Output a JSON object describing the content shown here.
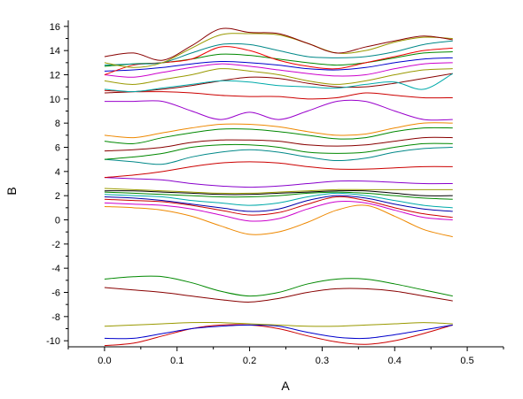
{
  "chart_data": {
    "type": "line",
    "xlabel": "A",
    "ylabel": "B",
    "xlim": [
      -0.05,
      0.55
    ],
    "ylim": [
      -10.5,
      16.5
    ],
    "xticks": [
      "0.0",
      "0.1",
      "0.2",
      "0.3",
      "0.4",
      "0.5"
    ],
    "yticks": [
      "-10",
      "-8",
      "-6",
      "-4",
      "-2",
      "0",
      "2",
      "4",
      "6",
      "8",
      "10",
      "12",
      "14",
      "16"
    ],
    "x": [
      0.0,
      0.04,
      0.08,
      0.12,
      0.16,
      0.2,
      0.24,
      0.28,
      0.32,
      0.36,
      0.4,
      0.44,
      0.48
    ],
    "series": [
      {
        "color": "#cc0000",
        "values": [
          -10.4,
          -10.2,
          -9.6,
          -9.0,
          -8.7,
          -8.7,
          -9.0,
          -9.6,
          -10.1,
          -10.3,
          -10.0,
          -9.4,
          -8.7
        ]
      },
      {
        "color": "#0000cc",
        "values": [
          -9.8,
          -9.8,
          -9.4,
          -9.0,
          -8.8,
          -8.7,
          -8.8,
          -9.3,
          -9.7,
          -9.8,
          -9.5,
          -9.1,
          -8.7
        ]
      },
      {
        "color": "#999900",
        "values": [
          -8.8,
          -8.7,
          -8.6,
          -8.5,
          -8.5,
          -8.6,
          -8.7,
          -8.8,
          -8.8,
          -8.7,
          -8.6,
          -8.5,
          -8.6
        ]
      },
      {
        "color": "#880000",
        "values": [
          -5.6,
          -5.8,
          -6.0,
          -6.3,
          -6.6,
          -6.8,
          -6.5,
          -6.0,
          -5.7,
          -5.7,
          -5.9,
          -6.3,
          -6.7
        ]
      },
      {
        "color": "#008800",
        "values": [
          -4.9,
          -4.7,
          -4.7,
          -5.2,
          -5.9,
          -6.3,
          -6.0,
          -5.3,
          -4.9,
          -4.9,
          -5.3,
          -5.8,
          -6.3
        ]
      },
      {
        "color": "#ee8800",
        "values": [
          1.1,
          1.0,
          0.8,
          0.3,
          -0.5,
          -1.2,
          -1.0,
          -0.2,
          0.8,
          1.2,
          0.3,
          -0.8,
          -1.4
        ]
      },
      {
        "color": "#cc00cc",
        "values": [
          1.4,
          1.3,
          1.2,
          0.9,
          0.4,
          -0.1,
          0.1,
          0.9,
          1.5,
          1.4,
          0.8,
          0.2,
          0.0
        ]
      },
      {
        "color": "#cc0000",
        "values": [
          1.7,
          1.6,
          1.5,
          1.2,
          0.8,
          0.4,
          0.6,
          1.3,
          1.9,
          1.6,
          1.0,
          0.5,
          0.2
        ]
      },
      {
        "color": "#0000aa",
        "values": [
          1.9,
          1.8,
          1.6,
          1.3,
          1.0,
          0.7,
          0.9,
          1.6,
          2.0,
          1.8,
          1.3,
          0.9,
          0.7
        ]
      },
      {
        "color": "#00aaaa",
        "values": [
          2.1,
          2.0,
          1.9,
          1.6,
          1.4,
          1.2,
          1.4,
          1.9,
          2.2,
          2.0,
          1.6,
          1.2,
          1.0
        ]
      },
      {
        "color": "#008800",
        "values": [
          2.3,
          2.2,
          2.1,
          2.0,
          1.9,
          1.9,
          2.0,
          2.2,
          2.3,
          2.2,
          2.0,
          1.8,
          1.7
        ]
      },
      {
        "color": "#000000",
        "values": [
          2.4,
          2.4,
          2.3,
          2.2,
          2.1,
          2.1,
          2.2,
          2.3,
          2.4,
          2.4,
          2.2,
          2.0,
          2.0
        ]
      },
      {
        "color": "#999900",
        "values": [
          2.6,
          2.5,
          2.4,
          2.3,
          2.2,
          2.2,
          2.3,
          2.4,
          2.5,
          2.5,
          2.5,
          2.5,
          2.5
        ]
      },
      {
        "color": "#8800cc",
        "values": [
          3.5,
          3.4,
          3.3,
          3.0,
          2.8,
          2.7,
          2.8,
          3.0,
          3.2,
          3.2,
          3.1,
          3.0,
          3.0
        ]
      },
      {
        "color": "#cc0000",
        "values": [
          3.5,
          3.7,
          4.0,
          4.4,
          4.7,
          4.8,
          4.7,
          4.4,
          4.2,
          4.2,
          4.3,
          4.4,
          4.4
        ]
      },
      {
        "color": "#008888",
        "values": [
          5.0,
          4.8,
          4.6,
          5.2,
          5.6,
          5.8,
          5.6,
          5.2,
          4.9,
          5.1,
          5.6,
          5.9,
          6.0
        ]
      },
      {
        "color": "#008800",
        "values": [
          5.0,
          5.2,
          5.5,
          6.0,
          6.2,
          6.2,
          6.0,
          5.6,
          5.5,
          5.6,
          6.0,
          6.3,
          6.3
        ]
      },
      {
        "color": "#880000",
        "values": [
          5.7,
          5.8,
          6.0,
          6.4,
          6.6,
          6.6,
          6.5,
          6.2,
          6.1,
          6.2,
          6.5,
          6.8,
          6.8
        ]
      },
      {
        "color": "#008800",
        "values": [
          6.5,
          6.3,
          6.8,
          7.2,
          7.5,
          7.5,
          7.3,
          7.0,
          6.7,
          6.8,
          7.3,
          7.6,
          7.6
        ]
      },
      {
        "color": "#ee8800",
        "values": [
          7.0,
          6.8,
          7.2,
          7.6,
          7.9,
          7.9,
          7.7,
          7.3,
          7.0,
          7.1,
          7.6,
          8.0,
          8.0
        ]
      },
      {
        "color": "#9900cc",
        "values": [
          9.8,
          9.8,
          9.8,
          9.0,
          8.3,
          8.9,
          8.3,
          9.0,
          9.8,
          9.8,
          9.0,
          8.3,
          8.3
        ]
      },
      {
        "color": "#cc0000",
        "values": [
          10.7,
          10.6,
          10.6,
          10.5,
          10.3,
          10.2,
          10.2,
          10.0,
          10.1,
          10.5,
          10.3,
          10.1,
          10.1
        ]
      },
      {
        "color": "#880000",
        "values": [
          10.5,
          10.6,
          10.8,
          11.1,
          11.5,
          11.8,
          11.7,
          11.3,
          11.0,
          11.0,
          11.3,
          11.7,
          12.1
        ]
      },
      {
        "color": "#00aaaa",
        "values": [
          10.8,
          10.6,
          10.9,
          11.2,
          11.5,
          11.4,
          11.1,
          11.0,
          10.9,
          11.2,
          11.4,
          10.8,
          12.1
        ]
      },
      {
        "color": "#999900",
        "values": [
          11.5,
          11.2,
          11.6,
          12.0,
          12.5,
          12.3,
          12.0,
          11.5,
          11.2,
          11.5,
          12.0,
          12.4,
          12.5
        ]
      },
      {
        "color": "#cc00cc",
        "values": [
          12.0,
          11.8,
          12.2,
          12.6,
          12.9,
          12.7,
          12.4,
          12.1,
          11.9,
          12.0,
          12.5,
          12.9,
          13.0
        ]
      },
      {
        "color": "#0000cc",
        "values": [
          12.3,
          12.4,
          12.6,
          12.9,
          13.1,
          13.0,
          12.8,
          12.5,
          12.4,
          12.6,
          13.0,
          13.3,
          13.4
        ]
      },
      {
        "color": "#008800",
        "values": [
          12.7,
          12.9,
          13.0,
          13.3,
          13.7,
          13.6,
          13.3,
          13.0,
          12.8,
          13.0,
          13.4,
          13.8,
          13.9
        ]
      },
      {
        "color": "#ee0000",
        "values": [
          12.0,
          12.8,
          13.0,
          13.3,
          14.3,
          14.0,
          13.2,
          12.7,
          12.5,
          13.0,
          13.5,
          14.0,
          14.2
        ]
      },
      {
        "color": "#008888",
        "values": [
          12.8,
          12.9,
          13.0,
          13.8,
          14.5,
          14.5,
          14.0,
          13.5,
          13.4,
          13.5,
          13.9,
          14.5,
          14.8
        ]
      },
      {
        "color": "#999900",
        "values": [
          13.0,
          12.6,
          13.0,
          14.2,
          15.3,
          15.4,
          15.3,
          14.6,
          13.8,
          14.0,
          14.7,
          15.1,
          15.0
        ]
      },
      {
        "color": "#880000",
        "values": [
          13.5,
          13.8,
          13.2,
          14.4,
          15.8,
          15.5,
          15.4,
          14.6,
          13.8,
          14.3,
          14.8,
          15.2,
          14.9
        ]
      }
    ]
  }
}
